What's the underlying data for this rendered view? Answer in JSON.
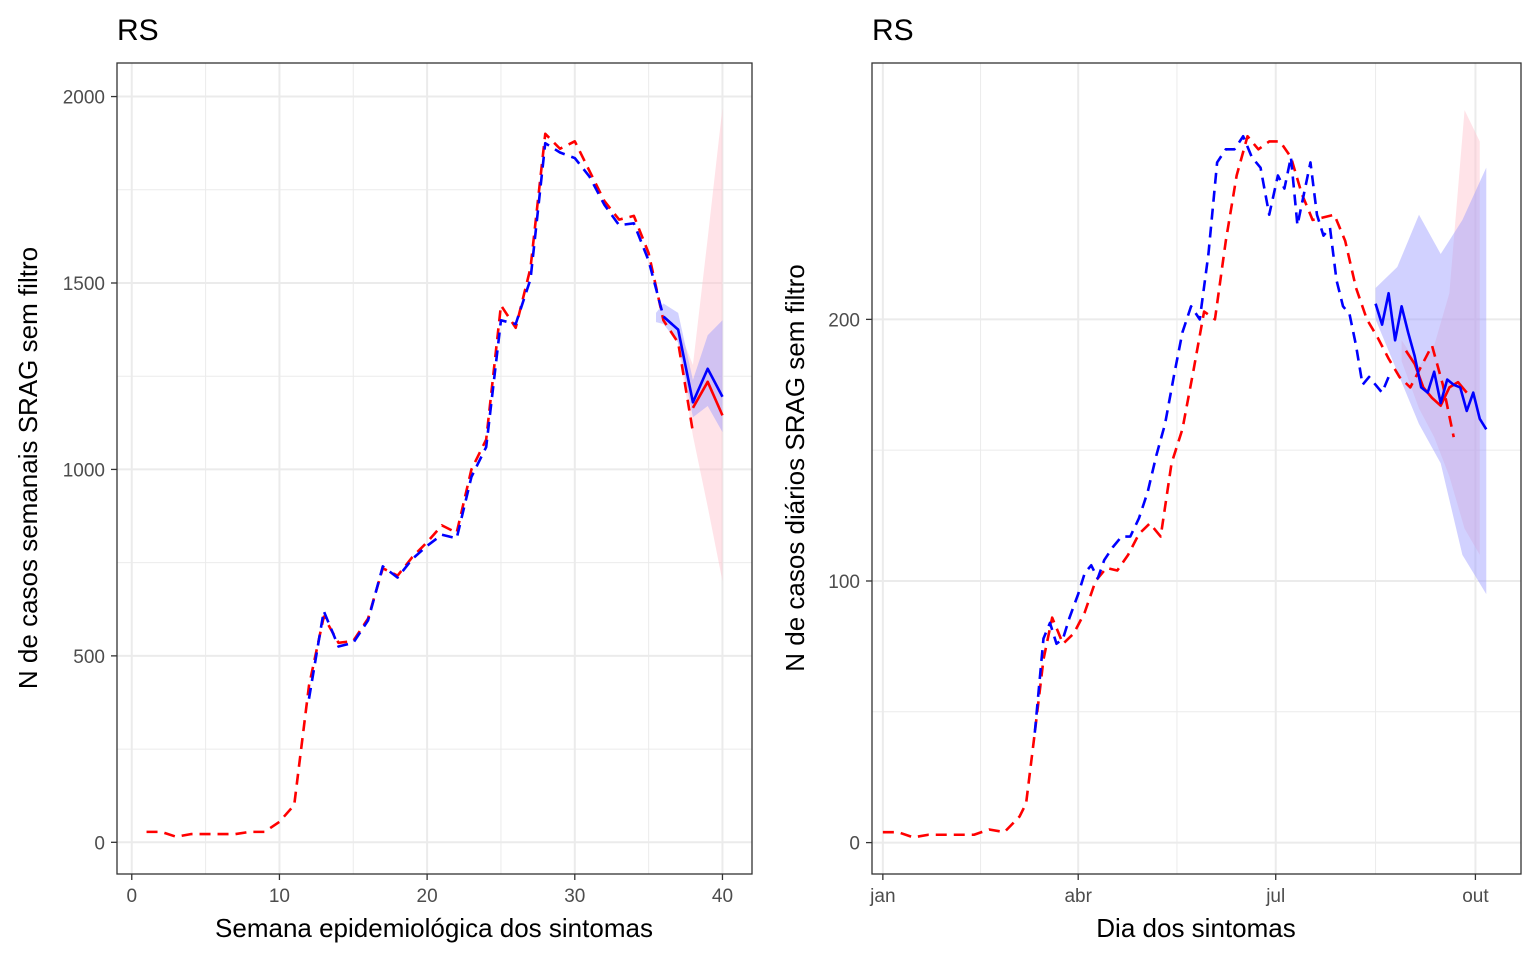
{
  "colors": {
    "observed": "#ff0000",
    "nowcast": "#0000ff",
    "observed_band": "#ffc0cb",
    "nowcast_band": "#9999ff",
    "grid": "#ebebeb",
    "panel_border": "#333333"
  },
  "chart_data": [
    {
      "type": "line",
      "title": "RS",
      "xlabel": "Semana epidemiológica dos sintomas",
      "ylabel": "N de casos semanais SRAG sem filtro",
      "xlim": [
        -1,
        42
      ],
      "ylim": [
        -85,
        2090
      ],
      "x_ticks": [
        0,
        10,
        20,
        30,
        40
      ],
      "x_tick_labels": [
        "0",
        "10",
        "20",
        "30",
        "40"
      ],
      "y_ticks": [
        0,
        500,
        1000,
        1500,
        2000
      ],
      "y_tick_labels": [
        "0",
        "500",
        "1000",
        "1500",
        "2000"
      ],
      "grid": true,
      "legend": "none",
      "series": [
        {
          "style": "dashed",
          "color": "#ff0000",
          "x": [
            1,
            2,
            3,
            4,
            5,
            6,
            7,
            8,
            9,
            10,
            11,
            12,
            13,
            14,
            15,
            16,
            17,
            18,
            19,
            20,
            21,
            22,
            23,
            24,
            25,
            26,
            27,
            28,
            29,
            30,
            31,
            32,
            33,
            34,
            35,
            36,
            37,
            38
          ],
          "y": [
            28,
            28,
            15,
            22,
            22,
            22,
            22,
            28,
            28,
            55,
            100,
            420,
            605,
            535,
            540,
            600,
            735,
            715,
            765,
            805,
            850,
            830,
            1000,
            1080,
            1440,
            1380,
            1540,
            1900,
            1860,
            1880,
            1800,
            1720,
            1670,
            1680,
            1580,
            1400,
            1340,
            1100
          ]
        },
        {
          "style": "dashed",
          "color": "#0000ff",
          "x": [
            12,
            13,
            14,
            15,
            16,
            17,
            18,
            19,
            20,
            21,
            22,
            23,
            24,
            25,
            26,
            27,
            28,
            29,
            30,
            31,
            32,
            33,
            34,
            35,
            36,
            37
          ],
          "y": [
            385,
            620,
            525,
            535,
            595,
            740,
            710,
            760,
            795,
            825,
            815,
            980,
            1060,
            1400,
            1390,
            1510,
            1875,
            1850,
            1835,
            1785,
            1710,
            1655,
            1660,
            1560,
            1410,
            1375
          ]
        },
        {
          "style": "solid",
          "color": "#0000ff",
          "x": [
            36,
            37,
            38,
            39,
            40
          ],
          "y": [
            1410,
            1375,
            1180,
            1270,
            1195
          ]
        },
        {
          "style": "solid",
          "color": "#ff0000",
          "x": [
            38,
            39,
            40
          ],
          "y": [
            1165,
            1235,
            1145
          ]
        }
      ],
      "bands": [
        {
          "color": "#ffc0cb",
          "x": [
            37,
            38,
            39,
            40
          ],
          "lower": [
            1330,
            1090,
            900,
            700
          ],
          "upper": [
            1380,
            1280,
            1620,
            1970
          ]
        },
        {
          "color": "#9999ff",
          "x": [
            35.5,
            36,
            37,
            38,
            39,
            40
          ],
          "lower": [
            1395,
            1390,
            1340,
            1140,
            1170,
            1100
          ],
          "upper": [
            1420,
            1445,
            1420,
            1240,
            1360,
            1400
          ]
        }
      ]
    },
    {
      "type": "line",
      "title": "RS",
      "xlabel": "Dia dos sintomas",
      "ylabel": "N de casos diários SRAG sem filtro",
      "xlim": [
        "2020-12-27",
        "2021-10-22"
      ],
      "ylim": [
        -12,
        298
      ],
      "x_ticks": [
        "2021-01-01",
        "2021-04-01",
        "2021-07-01",
        "2021-10-01"
      ],
      "x_tick_labels": [
        "jan",
        "abr",
        "jul",
        "out"
      ],
      "y_ticks": [
        0,
        100,
        200
      ],
      "y_tick_labels": [
        "0",
        "100",
        "200"
      ],
      "grid": true,
      "legend": "none",
      "series": [
        {
          "style": "dashed",
          "color": "#ff0000",
          "x": [
            "2021-01-01",
            "2021-01-08",
            "2021-01-15",
            "2021-01-22",
            "2021-01-29",
            "2021-02-05",
            "2021-02-12",
            "2021-02-19",
            "2021-02-26",
            "2021-03-05",
            "2021-03-08",
            "2021-03-12",
            "2021-03-16",
            "2021-03-20",
            "2021-03-25",
            "2021-03-30",
            "2021-04-04",
            "2021-04-09",
            "2021-04-14",
            "2021-04-19",
            "2021-04-24",
            "2021-04-29",
            "2021-05-04",
            "2021-05-09",
            "2021-05-14",
            "2021-05-19",
            "2021-05-24",
            "2021-05-29",
            "2021-06-03",
            "2021-06-08",
            "2021-06-13",
            "2021-06-18",
            "2021-06-23",
            "2021-06-28",
            "2021-07-03",
            "2021-07-08",
            "2021-07-13",
            "2021-07-18",
            "2021-07-23",
            "2021-07-28",
            "2021-08-02",
            "2021-08-07",
            "2021-08-12",
            "2021-08-17",
            "2021-08-22",
            "2021-08-27",
            "2021-09-01",
            "2021-09-06",
            "2021-09-11",
            "2021-09-16",
            "2021-09-21"
          ],
          "y": [
            4,
            4,
            2,
            3,
            3,
            3,
            3,
            5,
            4,
            10,
            15,
            42,
            70,
            86,
            76,
            80,
            88,
            100,
            105,
            104,
            110,
            118,
            122,
            117,
            145,
            158,
            180,
            203,
            200,
            230,
            255,
            270,
            265,
            268,
            268,
            262,
            248,
            238,
            239,
            240,
            230,
            212,
            200,
            193,
            185,
            178,
            174,
            182,
            190,
            175,
            155
          ]
        },
        {
          "style": "dashed",
          "color": "#0000ff",
          "x": [
            "2021-03-12",
            "2021-03-16",
            "2021-03-19",
            "2021-03-22",
            "2021-03-25",
            "2021-03-28",
            "2021-04-01",
            "2021-04-04",
            "2021-04-07",
            "2021-04-10",
            "2021-04-13",
            "2021-04-17",
            "2021-04-21",
            "2021-04-25",
            "2021-04-29",
            "2021-05-03",
            "2021-05-07",
            "2021-05-11",
            "2021-05-15",
            "2021-05-19",
            "2021-05-23",
            "2021-05-27",
            "2021-05-31",
            "2021-06-04",
            "2021-06-08",
            "2021-06-12",
            "2021-06-16",
            "2021-06-20",
            "2021-06-24",
            "2021-06-28",
            "2021-07-02",
            "2021-07-05",
            "2021-07-08",
            "2021-07-11",
            "2021-07-14",
            "2021-07-17",
            "2021-07-20",
            "2021-07-23",
            "2021-07-26",
            "2021-07-29",
            "2021-08-01",
            "2021-08-04",
            "2021-08-07",
            "2021-08-10",
            "2021-08-13",
            "2021-08-16",
            "2021-08-19",
            "2021-08-22"
          ],
          "y": [
            42,
            78,
            84,
            76,
            78,
            86,
            95,
            103,
            106,
            101,
            108,
            113,
            117,
            117,
            124,
            134,
            148,
            160,
            178,
            195,
            205,
            200,
            225,
            260,
            265,
            265,
            270,
            262,
            258,
            240,
            255,
            250,
            262,
            236,
            248,
            260,
            240,
            232,
            235,
            215,
            205,
            202,
            190,
            175,
            178,
            175,
            172,
            178
          ]
        },
        {
          "style": "solid",
          "color": "#ff0000",
          "x": [
            "2021-08-30",
            "2021-09-03",
            "2021-09-07",
            "2021-09-11",
            "2021-09-15",
            "2021-09-19",
            "2021-09-23",
            "2021-09-27"
          ],
          "y": [
            188,
            183,
            174,
            170,
            167,
            174,
            176,
            172
          ]
        },
        {
          "style": "solid",
          "color": "#0000ff",
          "x": [
            "2021-08-16",
            "2021-08-19",
            "2021-08-22",
            "2021-08-25",
            "2021-08-28",
            "2021-08-31",
            "2021-09-03",
            "2021-09-06",
            "2021-09-09",
            "2021-09-12",
            "2021-09-15",
            "2021-09-18",
            "2021-09-21",
            "2021-09-24",
            "2021-09-27",
            "2021-09-30",
            "2021-10-03",
            "2021-10-06"
          ],
          "y": [
            206,
            198,
            210,
            192,
            205,
            195,
            186,
            174,
            172,
            180,
            168,
            177,
            175,
            174,
            165,
            172,
            162,
            158
          ]
        }
      ],
      "bands": [
        {
          "color": "#ffc0cb",
          "x": [
            "2021-08-28",
            "2021-09-05",
            "2021-09-12",
            "2021-09-19",
            "2021-09-26",
            "2021-10-03"
          ],
          "lower": [
            184,
            166,
            155,
            140,
            120,
            110
          ],
          "upper": [
            192,
            182,
            190,
            210,
            280,
            268
          ]
        },
        {
          "color": "#9999ff",
          "x": [
            "2021-08-16",
            "2021-08-26",
            "2021-09-05",
            "2021-09-15",
            "2021-09-25",
            "2021-10-06"
          ],
          "lower": [
            200,
            180,
            160,
            145,
            110,
            95
          ],
          "upper": [
            212,
            220,
            240,
            225,
            238,
            258
          ]
        }
      ]
    }
  ]
}
